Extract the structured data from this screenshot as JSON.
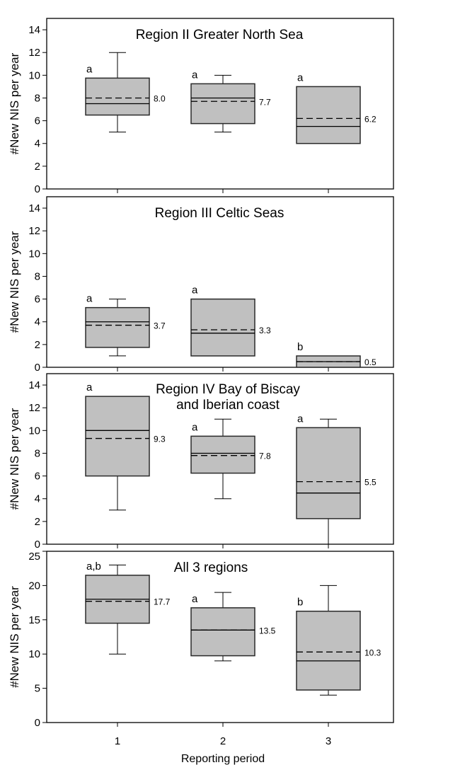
{
  "chart_data": [
    {
      "type": "box",
      "title": [
        "Region II Greater North Sea"
      ],
      "ylabel": "#New NIS per year",
      "ylim": [
        0,
        15
      ],
      "yticks": [
        0,
        2,
        4,
        6,
        8,
        10,
        12,
        14
      ],
      "categories": [
        "1",
        "2",
        "3"
      ],
      "boxes": [
        {
          "whisker_low": 5,
          "q1": 6.5,
          "median": 7.5,
          "q3": 9.75,
          "whisker_high": 12,
          "mean": 8.0,
          "mean_label": "8.0",
          "letter": "a"
        },
        {
          "whisker_low": 5,
          "q1": 5.75,
          "median": 8,
          "q3": 9.25,
          "whisker_high": 10,
          "mean": 7.7,
          "mean_label": "7.7",
          "letter": "a"
        },
        {
          "whisker_low": 4,
          "q1": 4,
          "median": 5.5,
          "q3": 9,
          "whisker_high": 9,
          "mean": 6.2,
          "mean_label": "6.2",
          "letter": "a"
        }
      ]
    },
    {
      "type": "box",
      "title": [
        "Region III Celtic Seas"
      ],
      "ylabel": "#New NIS per year",
      "ylim": [
        0,
        15
      ],
      "yticks": [
        0,
        2,
        4,
        6,
        8,
        10,
        12,
        14
      ],
      "categories": [
        "1",
        "2",
        "3"
      ],
      "boxes": [
        {
          "whisker_low": 1,
          "q1": 1.75,
          "median": 4,
          "q3": 5.25,
          "whisker_high": 6,
          "mean": 3.7,
          "mean_label": "3.7",
          "letter": "a"
        },
        {
          "whisker_low": 1,
          "q1": 1,
          "median": 3,
          "q3": 6,
          "whisker_high": 6,
          "mean": 3.3,
          "mean_label": "3.3",
          "letter": "a"
        },
        {
          "whisker_low": 0,
          "q1": 0,
          "median": 0.5,
          "q3": 1,
          "whisker_high": 1,
          "mean": 0.5,
          "mean_label": "0.5",
          "letter": "b"
        }
      ]
    },
    {
      "type": "box",
      "title": [
        "Region IV Bay of Biscay",
        "and Iberian coast"
      ],
      "ylabel": "#New NIS per year",
      "ylim": [
        0,
        15
      ],
      "yticks": [
        0,
        2,
        4,
        6,
        8,
        10,
        12,
        14
      ],
      "categories": [
        "1",
        "2",
        "3"
      ],
      "boxes": [
        {
          "whisker_low": 3,
          "q1": 6,
          "median": 10,
          "q3": 13,
          "whisker_high": 13,
          "mean": 9.3,
          "mean_label": "9.3",
          "letter": "a"
        },
        {
          "whisker_low": 4,
          "q1": 6.25,
          "median": 8,
          "q3": 9.5,
          "whisker_high": 11,
          "mean": 7.8,
          "mean_label": "7.8",
          "letter": "a"
        },
        {
          "whisker_low": 0,
          "q1": 2.25,
          "median": 4.5,
          "q3": 10.25,
          "whisker_high": 11,
          "mean": 5.5,
          "mean_label": "5.5",
          "letter": "a"
        }
      ]
    },
    {
      "type": "box",
      "title": [
        "All 3 regions"
      ],
      "ylabel": "#New NIS per year",
      "xlabel": "Reporting period",
      "ylim": [
        0,
        25
      ],
      "yticks": [
        0,
        5,
        10,
        15,
        20,
        25
      ],
      "categories": [
        "1",
        "2",
        "3"
      ],
      "boxes": [
        {
          "whisker_low": 10,
          "q1": 14.5,
          "median": 18,
          "q3": 21.5,
          "whisker_high": 23,
          "mean": 17.7,
          "mean_label": "17.7",
          "letter": "a,b"
        },
        {
          "whisker_low": 9,
          "q1": 9.75,
          "median": 13.5,
          "q3": 16.75,
          "whisker_high": 19,
          "mean": 13.5,
          "mean_label": "13.5",
          "letter": "a"
        },
        {
          "whisker_low": 4,
          "q1": 4.75,
          "median": 9,
          "q3": 16.25,
          "whisker_high": 20,
          "mean": 10.3,
          "mean_label": "10.3",
          "letter": "b"
        }
      ]
    }
  ]
}
